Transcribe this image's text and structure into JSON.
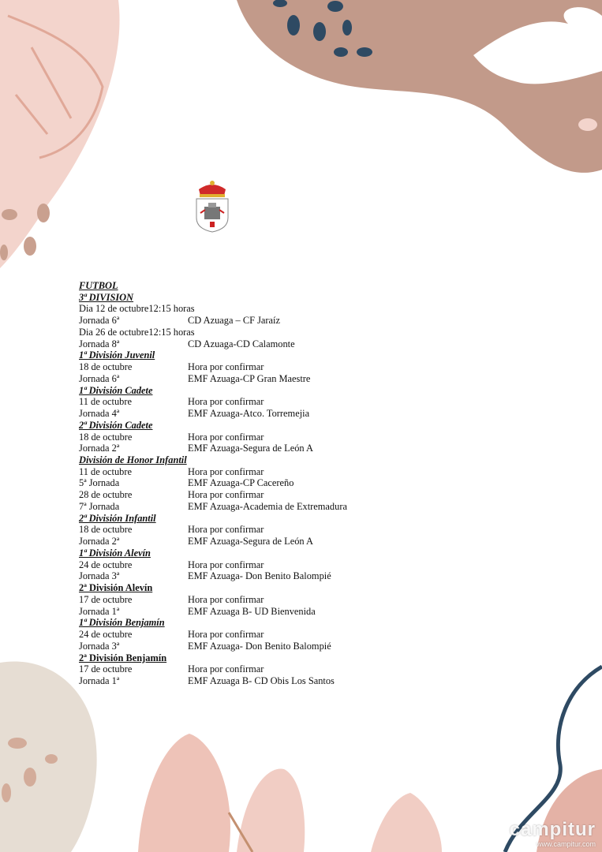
{
  "document": {
    "title": "FUTBOL",
    "sections": [
      {
        "heading": "3ª DIVISION",
        "italic": true,
        "rows": [
          {
            "left": "Dia 12 de octubre12:15 horas",
            "right": ""
          },
          {
            "left": "Jornada 6ª",
            "right": "CD Azuaga – CF Jaraíz"
          },
          {
            "left": "Dia 26 de octubre12:15 horas",
            "right": ""
          },
          {
            "left": "Jornada 8ª",
            "right": "CD Azuaga-CD Calamonte"
          }
        ]
      },
      {
        "heading": "1ª División Juvenil",
        "italic": true,
        "pad": true,
        "rows": [
          {
            "left": "18 de octubre",
            "right": "Hora por confirmar"
          },
          {
            "left": "Jornada 6ª",
            "right": "EMF Azuaga-CP Gran Maestre"
          }
        ]
      },
      {
        "heading": "1ª División Cadete",
        "italic": true,
        "rows": [
          {
            "left": "11 de octubre",
            "right": "Hora por confirmar"
          },
          {
            "left": "Jornada 4ª",
            "right": "EMF Azuaga-Atco. Torremejia"
          }
        ]
      },
      {
        "heading": "2ª División Cadete",
        "italic": true,
        "rows": [
          {
            "left": "18 de octubre",
            "right": "Hora por confirmar"
          },
          {
            "left": "Jornada 2ª",
            "right": "EMF Azuaga-Segura de León A"
          }
        ]
      },
      {
        "heading": "División de Honor Infantil",
        "italic": true,
        "pad": true,
        "rows": [
          {
            "left": "11 de octubre",
            "right": "Hora por confirmar"
          },
          {
            "left": "5ª Jornada",
            "right": "EMF Azuaga-CP Cacereño"
          },
          {
            "left": "28 de octubre",
            "right": "Hora por confirmar"
          },
          {
            "left": "7ª Jornada",
            "right": "EMF Azuaga-Academia de Extremadura"
          }
        ]
      },
      {
        "heading": "2ª División Infantil",
        "italic": true,
        "rows": [
          {
            "left": "18 de octubre",
            "right": "Hora por confirmar"
          },
          {
            "left": "Jornada 2ª",
            "right": "EMF Azuaga-Segura de León A"
          }
        ]
      },
      {
        "heading": "1ª División Alevín",
        "italic": true,
        "rows": [
          {
            "left": "24 de octubre",
            "right": "Hora por confirmar"
          },
          {
            "left": "Jornada 3ª",
            "right": "EMF Azuaga- Don Benito Balompié"
          }
        ]
      },
      {
        "heading": "2ª División Alevín",
        "italic": false,
        "rows": [
          {
            "left": "17 de octubre",
            "right": "Hora por confirmar"
          },
          {
            "left": "Jornada 1ª",
            "right": "EMF Azuaga B- UD Bienvenida"
          }
        ]
      },
      {
        "heading": "1ª División Benjamín",
        "italic": true,
        "rows": [
          {
            "left": "24 de octubre",
            "right": "Hora por confirmar"
          },
          {
            "left": "Jornada 3ª",
            "right": "EMF Azuaga- Don Benito Balompié"
          }
        ]
      },
      {
        "heading": "2ª División Benjamín",
        "italic": false,
        "rows": [
          {
            "left": "17 de octubre",
            "right": "Hora por confirmar"
          },
          {
            "left": "Jornada 1ª",
            "right": "EMF Azuaga B- CD Obis Los Santos"
          }
        ]
      }
    ]
  },
  "watermark": {
    "brand": "campitur",
    "url": "www.campitur.com"
  },
  "colors": {
    "pink": "#f1cdc4",
    "brown": "#c29a8a",
    "navy": "#2e4a63",
    "beige": "#e6ddd3",
    "rose": "#e4b2a6"
  }
}
